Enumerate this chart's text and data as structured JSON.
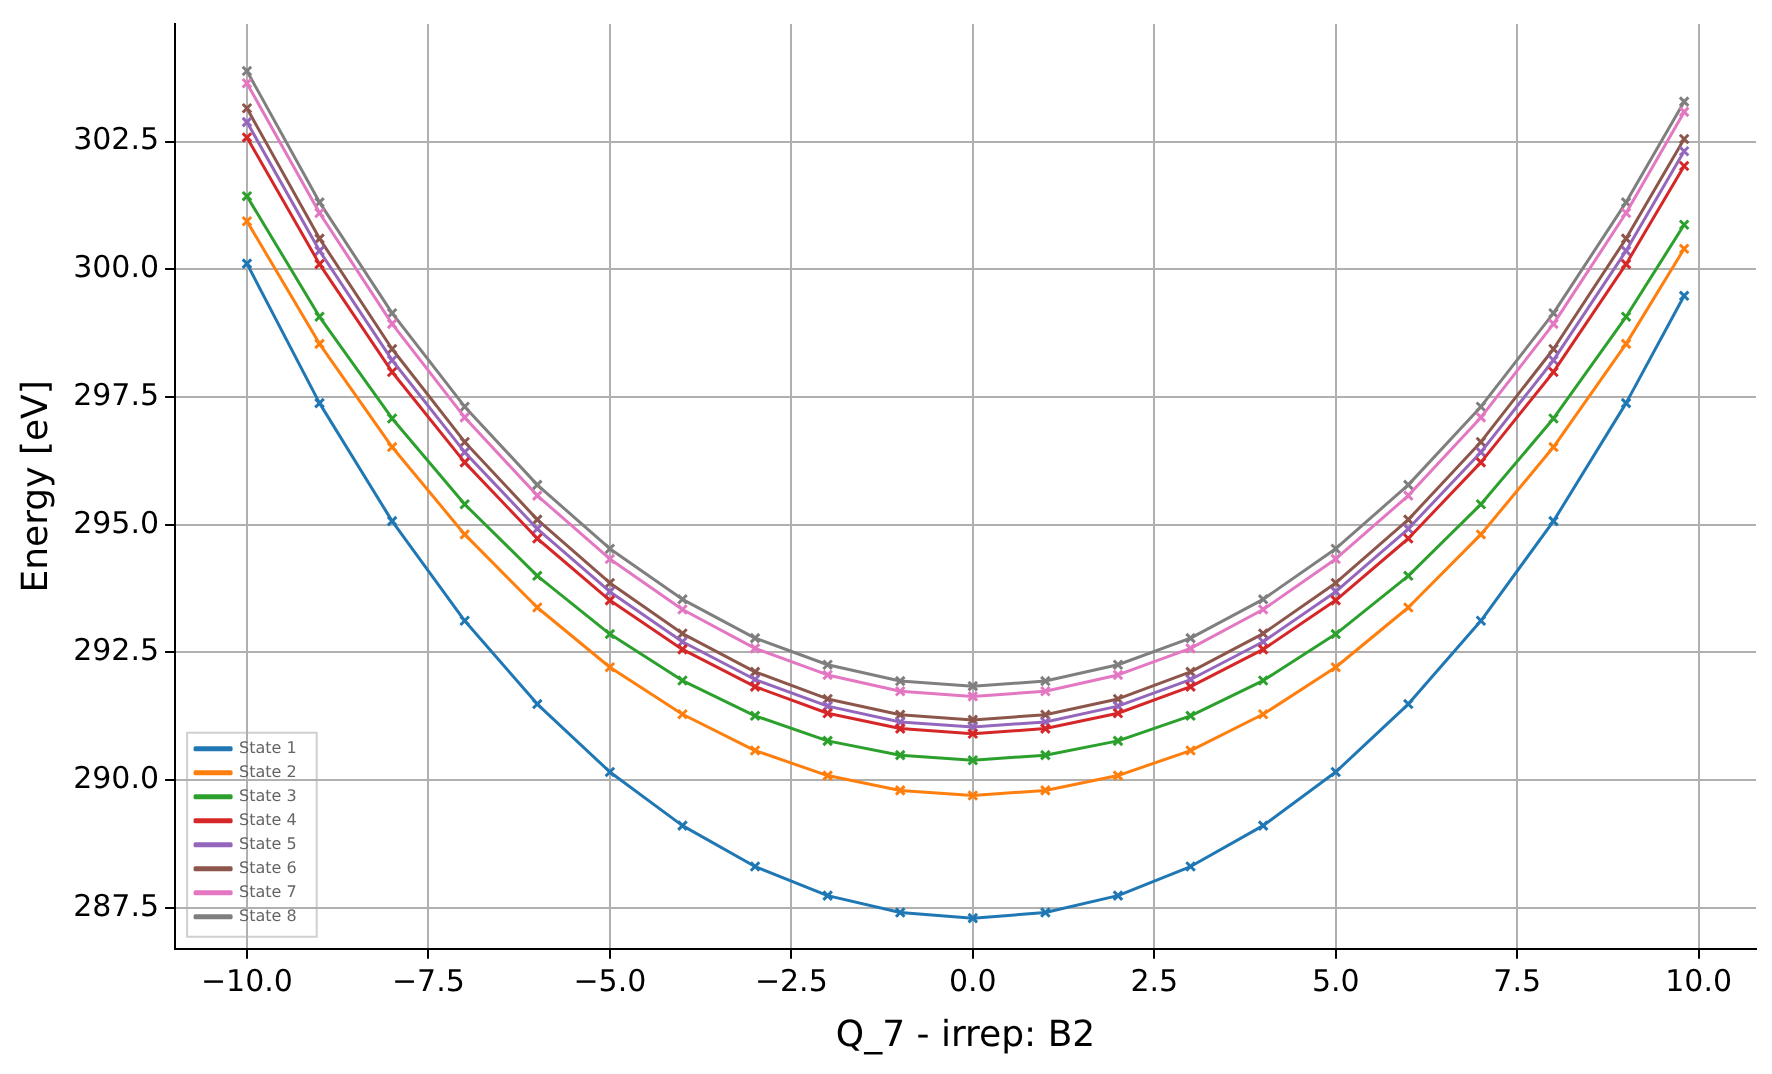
{
  "chart_data": {
    "type": "line",
    "xlabel": "Q_7 - irrep: B2",
    "ylabel": "Energy [eV]",
    "x": [
      -10,
      -9,
      -8,
      -7,
      -6,
      -5,
      -4,
      -3,
      -2,
      -1,
      0,
      1,
      2,
      3,
      4,
      5,
      6,
      7,
      8,
      9,
      9.8
    ],
    "series": [
      {
        "name": "State 1",
        "color": "#1f77b4",
        "values": [
          300.11,
          297.38,
          295.07,
          293.12,
          291.49,
          290.16,
          289.11,
          288.31,
          287.74,
          287.41,
          287.3,
          287.41,
          287.74,
          288.31,
          289.11,
          290.16,
          291.49,
          293.12,
          295.07,
          297.38,
          299.48
        ]
      },
      {
        "name": "State 2",
        "color": "#ff7f0e",
        "values": [
          300.94,
          298.54,
          296.52,
          294.81,
          293.38,
          292.21,
          291.29,
          290.58,
          290.09,
          289.8,
          289.7,
          289.8,
          290.09,
          290.58,
          291.29,
          292.21,
          293.38,
          294.81,
          296.52,
          298.54,
          300.4
        ]
      },
      {
        "name": "State 3",
        "color": "#2ca02c",
        "values": [
          301.43,
          299.07,
          297.08,
          295.4,
          294.0,
          292.86,
          291.95,
          291.26,
          290.77,
          290.49,
          290.39,
          290.49,
          290.77,
          291.26,
          291.95,
          292.86,
          294.0,
          295.4,
          297.08,
          299.07,
          300.87
        ]
      },
      {
        "name": "State 4",
        "color": "#d62728",
        "values": [
          302.58,
          300.1,
          297.99,
          296.22,
          294.73,
          293.52,
          292.56,
          291.83,
          291.31,
          291.01,
          290.91,
          291.01,
          291.31,
          291.83,
          292.56,
          293.52,
          294.73,
          296.22,
          297.99,
          300.1,
          302.02
        ]
      },
      {
        "name": "State 5",
        "color": "#9467bd",
        "values": [
          302.88,
          300.36,
          298.22,
          296.42,
          294.92,
          293.69,
          292.71,
          291.97,
          291.45,
          291.14,
          291.04,
          291.14,
          291.45,
          291.97,
          292.71,
          293.69,
          294.92,
          296.42,
          298.22,
          300.36,
          302.31
        ]
      },
      {
        "name": "State 6",
        "color": "#8c564b",
        "values": [
          303.15,
          300.6,
          298.44,
          296.62,
          295.1,
          293.86,
          292.87,
          292.12,
          291.59,
          291.28,
          291.18,
          291.28,
          291.59,
          292.12,
          292.87,
          293.86,
          295.1,
          296.62,
          298.44,
          300.6,
          302.55
        ]
      },
      {
        "name": "State 7",
        "color": "#e377c2",
        "values": [
          303.64,
          301.1,
          298.93,
          297.1,
          295.57,
          294.33,
          293.34,
          292.58,
          292.06,
          291.74,
          291.64,
          291.74,
          292.06,
          292.58,
          293.34,
          294.33,
          295.57,
          297.1,
          298.93,
          301.1,
          303.08
        ]
      },
      {
        "name": "State 8",
        "color": "#7f7f7f",
        "values": [
          303.88,
          301.31,
          299.14,
          297.31,
          295.78,
          294.53,
          293.54,
          292.78,
          292.26,
          291.94,
          291.84,
          291.94,
          292.26,
          292.78,
          293.54,
          294.53,
          295.78,
          297.31,
          299.14,
          301.31,
          303.28
        ]
      }
    ],
    "xlim": [
      -10.99,
      10.79
    ],
    "ylim": [
      286.7,
      304.8
    ],
    "xticks": [
      {
        "value": -10,
        "label": "−10.0"
      },
      {
        "value": -7.5,
        "label": "−7.5"
      },
      {
        "value": -5,
        "label": "−5.0"
      },
      {
        "value": -2.5,
        "label": "−2.5"
      },
      {
        "value": 0,
        "label": "0.0"
      },
      {
        "value": 2.5,
        "label": "2.5"
      },
      {
        "value": 5,
        "label": "5.0"
      },
      {
        "value": 7.5,
        "label": "7.5"
      },
      {
        "value": 10,
        "label": "10.0"
      }
    ],
    "yticks": [
      287.5,
      {
        "value": 290,
        "label": "290.0"
      },
      292.5,
      {
        "value": 295,
        "label": "295.0"
      },
      297.5,
      {
        "value": 300,
        "label": "300.0"
      },
      302.5
    ],
    "grid": true,
    "legend": "bottom left",
    "marker": "cross",
    "line_style": "solid"
  }
}
